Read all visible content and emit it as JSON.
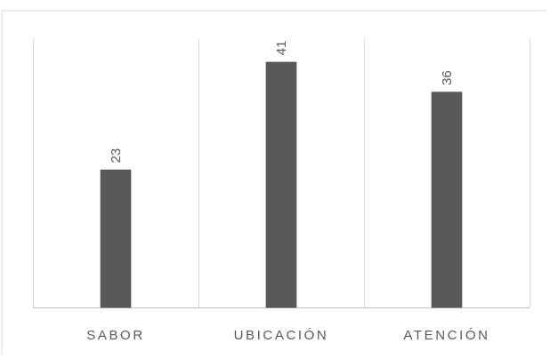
{
  "chart_data": {
    "type": "bar",
    "title": "",
    "xlabel": "",
    "ylabel": "",
    "categories": [
      "SABOR",
      "UBICACIÓN",
      "ATENCIÓN"
    ],
    "values": [
      23,
      41,
      36
    ],
    "data_labels": [
      "23",
      "41",
      "36"
    ],
    "ylim": [
      0,
      45
    ],
    "grid": "vertical separators between categories",
    "legend": "none",
    "colors": {
      "bar": "#595959",
      "bar_stroke": "#3f3f3f",
      "axis": "#bfbfbf",
      "separator": "#d9d9d9",
      "frame": "#d9d9d9",
      "text": "#595959"
    }
  }
}
